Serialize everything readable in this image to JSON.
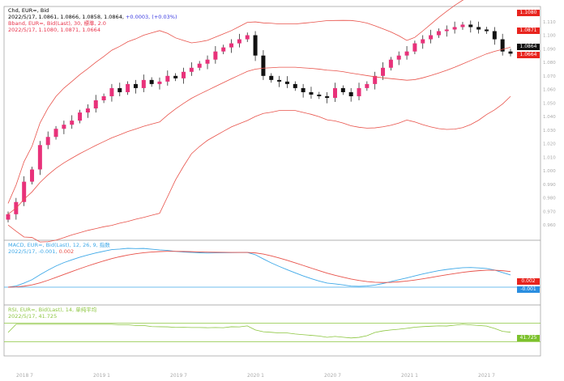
{
  "window_title": "EUR=",
  "price_legend": {
    "line1": "Chd, EUR=, Bid",
    "line2": "2022/5/17, 1.0861, 1.0866, 1.0858, 1.0864,",
    "change": "+0.0003, (+0.03%)",
    "line3": "Bband, EUR=, Bid(Last), 30, 標準, 2.0",
    "line4": "2022/5/17, 1.1080, 1.0871, 1.0664"
  },
  "macd_legend": {
    "line1": "MACD, EUR=, Bid(Last), 12, 26, 9, 指数",
    "line2": "2022/5/17, -0.001,",
    "line2b": "0.002"
  },
  "rsi_legend": {
    "line1": "RSI, EUR=, Bid(Last), 14, 单纯平均",
    "line2": "2022/5/17, 41.725"
  },
  "tags": {
    "bb_upper": "1.1080",
    "bb_mid": "1.0871",
    "last": "1.0864",
    "bb_lower": "1.0664",
    "macd_signal": "0.002",
    "macd": "-0.001",
    "rsi": "41.725"
  },
  "x_labels": [
    "2018 7",
    "2019 1",
    "2019 7",
    "2020 1",
    "2020 7",
    "2021 1",
    "2021 7"
  ],
  "colors": {
    "up": "#e8327a",
    "down": "#111111",
    "band": "#e8524a",
    "macd": "#3fa9e8",
    "signal": "#e8524a",
    "rsi": "#8cc63f"
  },
  "chart_data": {
    "type": "candlestick",
    "ylim": [
      0.95,
      1.12
    ],
    "y_ticks": [
      "1.110",
      "1.100",
      "1.090",
      "1.080",
      "1.070",
      "1.060",
      "1.050",
      "1.040",
      "1.030",
      "1.020",
      "1.010",
      "1.000",
      "0.990",
      "0.980",
      "0.970",
      "0.960"
    ],
    "closes": [
      0.968,
      0.977,
      0.992,
      1.001,
      1.019,
      1.025,
      1.031,
      1.034,
      1.037,
      1.043,
      1.046,
      1.052,
      1.055,
      1.061,
      1.058,
      1.064,
      1.061,
      1.067,
      1.064,
      1.0658,
      1.07,
      1.0682,
      1.073,
      1.076,
      1.079,
      1.082,
      1.088,
      1.091,
      1.094,
      1.097,
      1.1,
      1.085,
      1.07,
      1.067,
      1.0658,
      1.064,
      1.061,
      1.058,
      1.0562,
      1.055,
      1.0538,
      1.061,
      1.058,
      1.055,
      1.061,
      1.064,
      1.07,
      1.076,
      1.082,
      1.085,
      1.088,
      1.094,
      1.097,
      1.1,
      1.103,
      1.1042,
      1.106,
      1.1078,
      1.106,
      1.1042,
      1.103,
      1.097,
      1.088,
      1.0864
    ],
    "bollinger": {
      "period": 30,
      "std": 2.0
    },
    "macd": {
      "fast": 12,
      "slow": 26,
      "signal": 9,
      "last": -0.001,
      "signal_last": 0.002
    },
    "rsi": {
      "period": 14,
      "last": 41.725,
      "levels": [
        70,
        30
      ]
    }
  }
}
